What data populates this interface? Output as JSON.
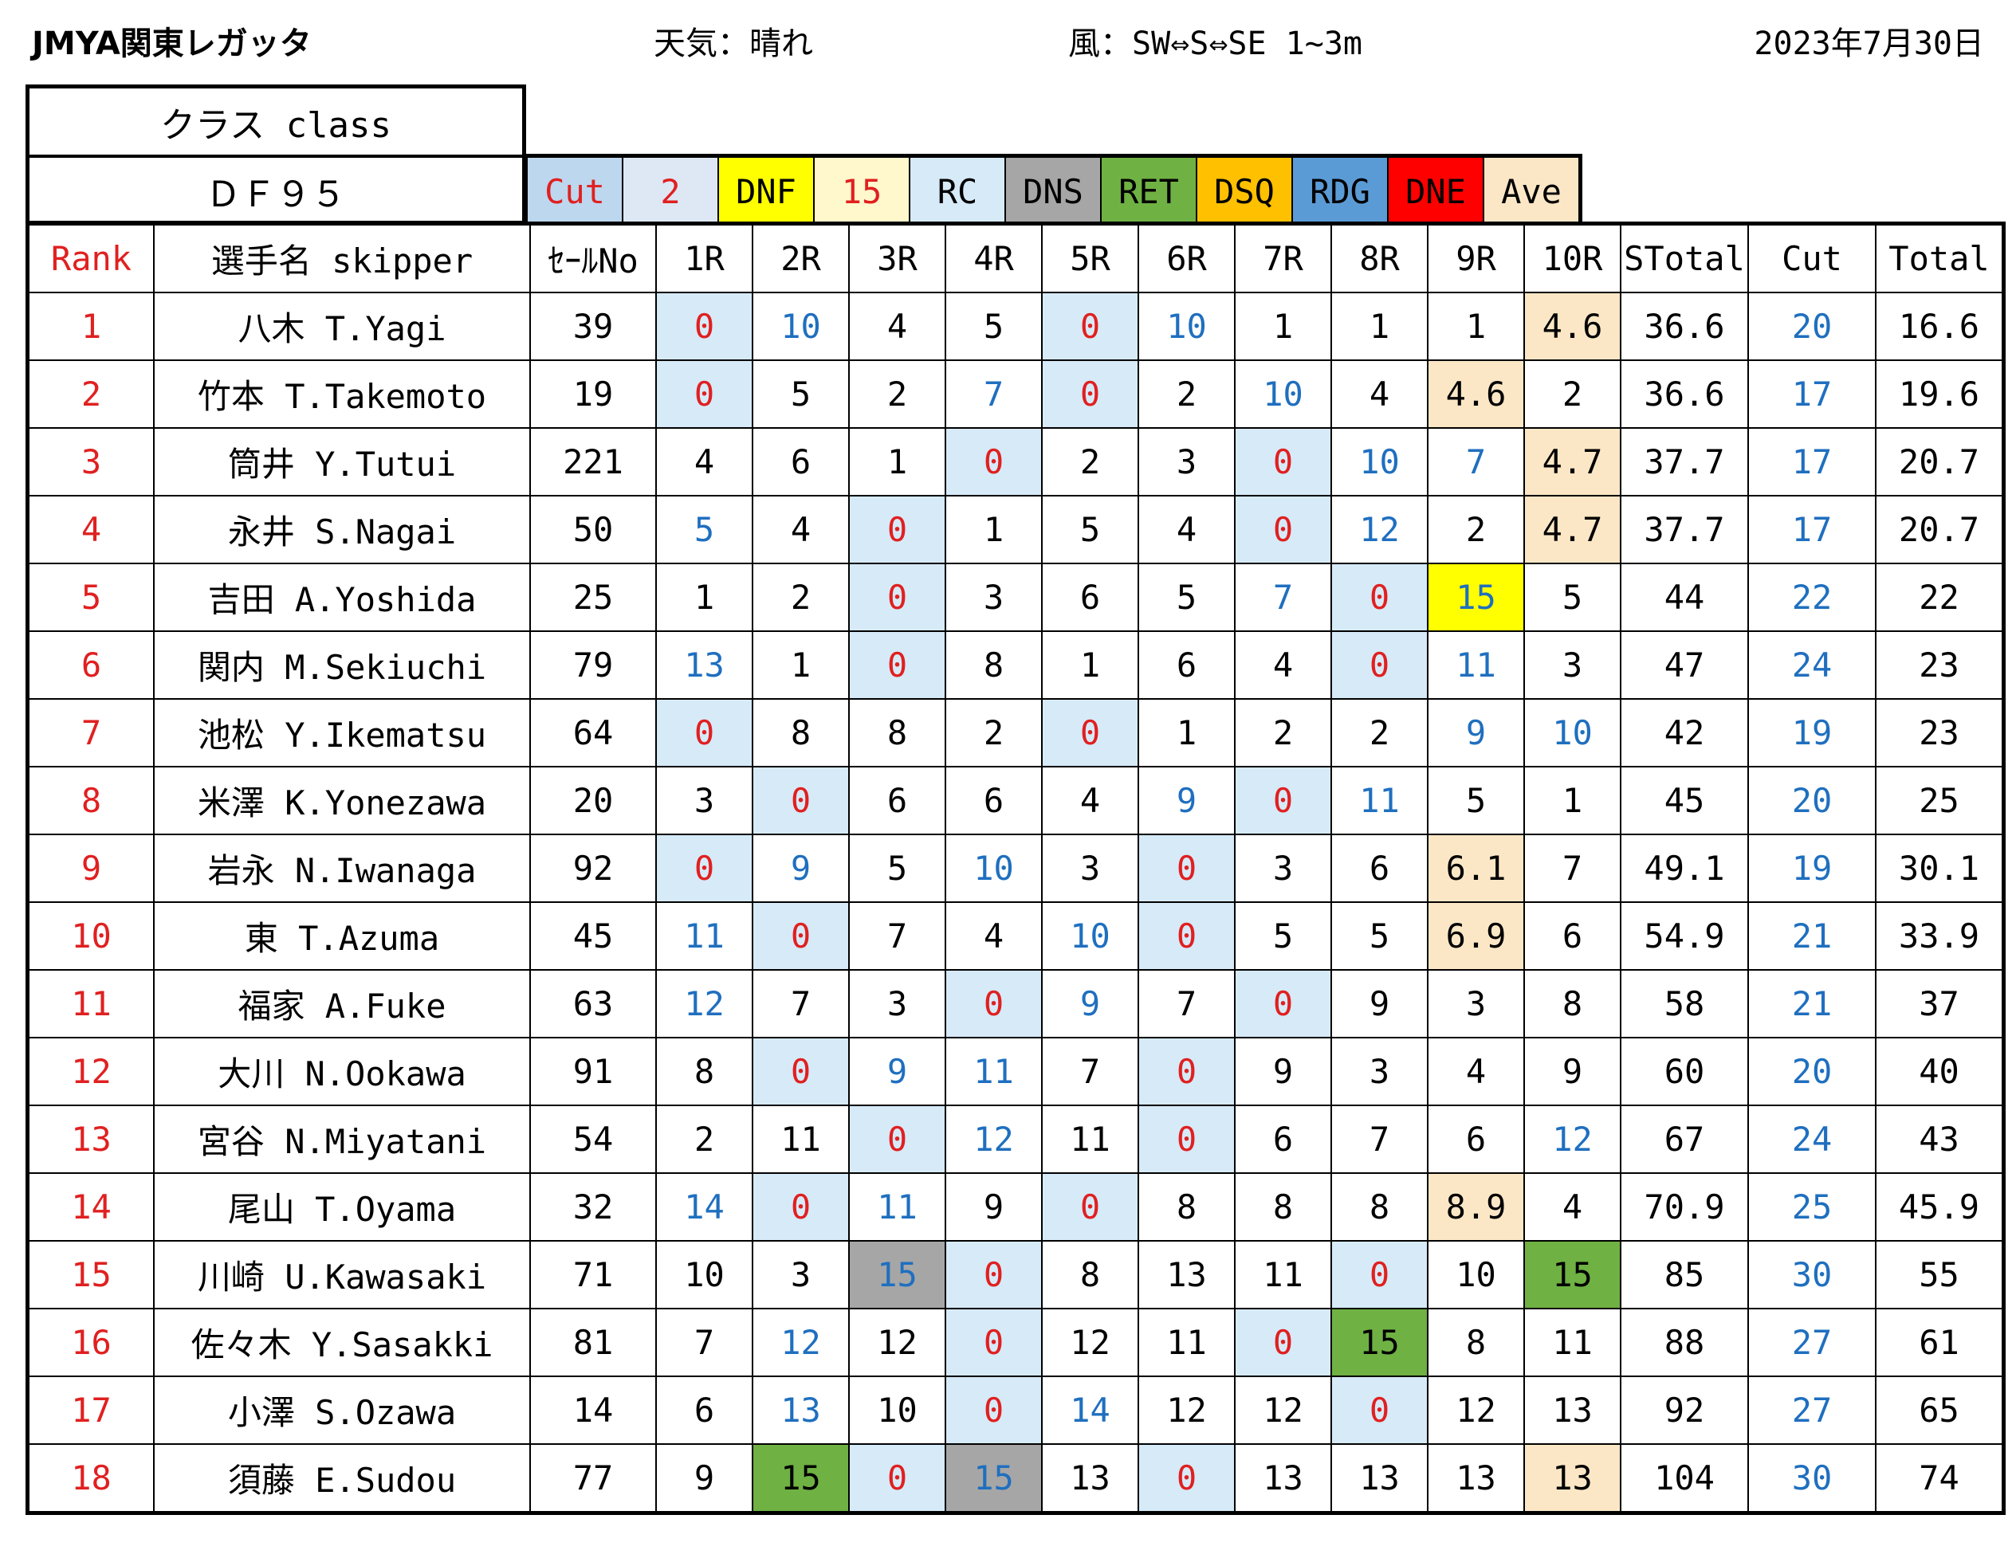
{
  "header": {
    "title": "JMYA関東レガッタ",
    "weather": "天気：晴れ",
    "wind": "風：SW⇔S⇔SE 1~3m",
    "date": "2023年7月30日"
  },
  "class_box": {
    "label": "クラス class",
    "value": "ＤＦ９５"
  },
  "legend": [
    {
      "label": "Cut",
      "bg": "#bdd7ee",
      "color": "#e02020"
    },
    {
      "label": "2",
      "bg": "#dde8f4",
      "color": "#e02020"
    },
    {
      "label": "DNF",
      "bg": "#ffff00",
      "color": "#000000"
    },
    {
      "label": "15",
      "bg": "#fff8cc",
      "color": "#e02020"
    },
    {
      "label": "RC",
      "bg": "#d6eaf8",
      "color": "#000000"
    },
    {
      "label": "DNS",
      "bg": "#a6a6a6",
      "color": "#000000"
    },
    {
      "label": "RET",
      "bg": "#6fb143",
      "color": "#000000"
    },
    {
      "label": "DSQ",
      "bg": "#ffc000",
      "color": "#000000"
    },
    {
      "label": "RDG",
      "bg": "#5b9bd5",
      "color": "#000000"
    },
    {
      "label": "DNE",
      "bg": "#ff0000",
      "color": "#000000"
    },
    {
      "label": "Ave",
      "bg": "#fbe7c6",
      "color": "#000000"
    }
  ],
  "columns": [
    "Rank",
    "選手名 skipper",
    "ｾｰﾙNo",
    "1R",
    "2R",
    "3R",
    "4R",
    "5R",
    "6R",
    "7R",
    "8R",
    "9R",
    "10R",
    "STotal",
    "Cut",
    "Total"
  ],
  "colors": {
    "zero_blue": "#d6eaf8",
    "ave": "#fbe7c6",
    "dnf": "#ffff00",
    "ret": "#6fb143",
    "dns": "#a6a6a6",
    "text_blue": "#1f6fbf",
    "text_red": "#e02020"
  },
  "rows": [
    {
      "rank": "1",
      "name": "八木 T.Yagi",
      "sail": "39",
      "races": [
        [
          "0",
          "z"
        ],
        [
          "10",
          "b"
        ],
        [
          "4",
          ""
        ],
        [
          "5",
          ""
        ],
        [
          "0",
          "z"
        ],
        [
          "10",
          "b"
        ],
        [
          "1",
          ""
        ],
        [
          "1",
          ""
        ],
        [
          "1",
          ""
        ],
        [
          "4.6",
          "a"
        ]
      ],
      "stotal": "36.6",
      "cut": "20",
      "total": "16.6"
    },
    {
      "rank": "2",
      "name": "竹本 T.Takemoto",
      "sail": "19",
      "races": [
        [
          "0",
          "z"
        ],
        [
          "5",
          ""
        ],
        [
          "2",
          ""
        ],
        [
          "7",
          "b"
        ],
        [
          "0",
          "z"
        ],
        [
          "2",
          ""
        ],
        [
          "10",
          "b"
        ],
        [
          "4",
          ""
        ],
        [
          "4.6",
          "a"
        ],
        [
          "2",
          ""
        ]
      ],
      "stotal": "36.6",
      "cut": "17",
      "total": "19.6"
    },
    {
      "rank": "3",
      "name": "筒井 Y.Tutui",
      "sail": "221",
      "races": [
        [
          "4",
          ""
        ],
        [
          "6",
          ""
        ],
        [
          "1",
          ""
        ],
        [
          "0",
          "z"
        ],
        [
          "2",
          ""
        ],
        [
          "3",
          ""
        ],
        [
          "0",
          "z"
        ],
        [
          "10",
          "b"
        ],
        [
          "7",
          "b"
        ],
        [
          "4.7",
          "a"
        ]
      ],
      "stotal": "37.7",
      "cut": "17",
      "total": "20.7"
    },
    {
      "rank": "4",
      "name": "永井 S.Nagai",
      "sail": "50",
      "races": [
        [
          "5",
          "b"
        ],
        [
          "4",
          ""
        ],
        [
          "0",
          "z"
        ],
        [
          "1",
          ""
        ],
        [
          "5",
          ""
        ],
        [
          "4",
          ""
        ],
        [
          "0",
          "z"
        ],
        [
          "12",
          "b"
        ],
        [
          "2",
          ""
        ],
        [
          "4.7",
          "a"
        ]
      ],
      "stotal": "37.7",
      "cut": "17",
      "total": "20.7"
    },
    {
      "rank": "5",
      "name": "吉田 A.Yoshida",
      "sail": "25",
      "races": [
        [
          "1",
          ""
        ],
        [
          "2",
          ""
        ],
        [
          "0",
          "z"
        ],
        [
          "3",
          ""
        ],
        [
          "6",
          ""
        ],
        [
          "5",
          ""
        ],
        [
          "7",
          "b"
        ],
        [
          "0",
          "z"
        ],
        [
          "15",
          "y"
        ],
        [
          "5",
          ""
        ]
      ],
      "stotal": "44",
      "cut": "22",
      "total": "22"
    },
    {
      "rank": "6",
      "name": "関内 M.Sekiuchi",
      "sail": "79",
      "races": [
        [
          "13",
          "b"
        ],
        [
          "1",
          ""
        ],
        [
          "0",
          "z"
        ],
        [
          "8",
          ""
        ],
        [
          "1",
          ""
        ],
        [
          "6",
          ""
        ],
        [
          "4",
          ""
        ],
        [
          "0",
          "z"
        ],
        [
          "11",
          "b"
        ],
        [
          "3",
          ""
        ]
      ],
      "stotal": "47",
      "cut": "24",
      "total": "23"
    },
    {
      "rank": "7",
      "name": "池松 Y.Ikematsu",
      "sail": "64",
      "races": [
        [
          "0",
          "z"
        ],
        [
          "8",
          ""
        ],
        [
          "8",
          ""
        ],
        [
          "2",
          ""
        ],
        [
          "0",
          "z"
        ],
        [
          "1",
          ""
        ],
        [
          "2",
          ""
        ],
        [
          "2",
          ""
        ],
        [
          "9",
          "b"
        ],
        [
          "10",
          "b"
        ]
      ],
      "stotal": "42",
      "cut": "19",
      "total": "23"
    },
    {
      "rank": "8",
      "name": "米澤 K.Yonezawa",
      "sail": "20",
      "races": [
        [
          "3",
          ""
        ],
        [
          "0",
          "z"
        ],
        [
          "6",
          ""
        ],
        [
          "6",
          ""
        ],
        [
          "4",
          ""
        ],
        [
          "9",
          "b"
        ],
        [
          "0",
          "z"
        ],
        [
          "11",
          "b"
        ],
        [
          "5",
          ""
        ],
        [
          "1",
          ""
        ]
      ],
      "stotal": "45",
      "cut": "20",
      "total": "25"
    },
    {
      "rank": "9",
      "name": "岩永 N.Iwanaga",
      "sail": "92",
      "races": [
        [
          "0",
          "z"
        ],
        [
          "9",
          "b"
        ],
        [
          "5",
          ""
        ],
        [
          "10",
          "b"
        ],
        [
          "3",
          ""
        ],
        [
          "0",
          "z"
        ],
        [
          "3",
          ""
        ],
        [
          "6",
          ""
        ],
        [
          "6.1",
          "a"
        ],
        [
          "7",
          ""
        ]
      ],
      "stotal": "49.1",
      "cut": "19",
      "total": "30.1"
    },
    {
      "rank": "10",
      "name": "東 T.Azuma",
      "sail": "45",
      "races": [
        [
          "11",
          "b"
        ],
        [
          "0",
          "z"
        ],
        [
          "7",
          ""
        ],
        [
          "4",
          ""
        ],
        [
          "10",
          "b"
        ],
        [
          "0",
          "z"
        ],
        [
          "5",
          ""
        ],
        [
          "5",
          ""
        ],
        [
          "6.9",
          "a"
        ],
        [
          "6",
          ""
        ]
      ],
      "stotal": "54.9",
      "cut": "21",
      "total": "33.9"
    },
    {
      "rank": "11",
      "name": "福家 A.Fuke",
      "sail": "63",
      "races": [
        [
          "12",
          "b"
        ],
        [
          "7",
          ""
        ],
        [
          "3",
          ""
        ],
        [
          "0",
          "z"
        ],
        [
          "9",
          "b"
        ],
        [
          "7",
          ""
        ],
        [
          "0",
          "z"
        ],
        [
          "9",
          ""
        ],
        [
          "3",
          ""
        ],
        [
          "8",
          ""
        ]
      ],
      "stotal": "58",
      "cut": "21",
      "total": "37"
    },
    {
      "rank": "12",
      "name": "大川 N.Ookawa",
      "sail": "91",
      "races": [
        [
          "8",
          ""
        ],
        [
          "0",
          "z"
        ],
        [
          "9",
          "b"
        ],
        [
          "11",
          "b"
        ],
        [
          "7",
          ""
        ],
        [
          "0",
          "z"
        ],
        [
          "9",
          ""
        ],
        [
          "3",
          ""
        ],
        [
          "4",
          ""
        ],
        [
          "9",
          ""
        ]
      ],
      "stotal": "60",
      "cut": "20",
      "total": "40"
    },
    {
      "rank": "13",
      "name": "宮谷 N.Miyatani",
      "sail": "54",
      "races": [
        [
          "2",
          ""
        ],
        [
          "11",
          ""
        ],
        [
          "0",
          "z"
        ],
        [
          "12",
          "b"
        ],
        [
          "11",
          ""
        ],
        [
          "0",
          "z"
        ],
        [
          "6",
          ""
        ],
        [
          "7",
          ""
        ],
        [
          "6",
          ""
        ],
        [
          "12",
          "b"
        ]
      ],
      "stotal": "67",
      "cut": "24",
      "total": "43"
    },
    {
      "rank": "14",
      "name": "尾山 T.Oyama",
      "sail": "32",
      "races": [
        [
          "14",
          "b"
        ],
        [
          "0",
          "z"
        ],
        [
          "11",
          "b"
        ],
        [
          "9",
          ""
        ],
        [
          "0",
          "z"
        ],
        [
          "8",
          ""
        ],
        [
          "8",
          ""
        ],
        [
          "8",
          ""
        ],
        [
          "8.9",
          "a"
        ],
        [
          "4",
          ""
        ]
      ],
      "stotal": "70.9",
      "cut": "25",
      "total": "45.9"
    },
    {
      "rank": "15",
      "name": "川崎 U.Kawasaki",
      "sail": "71",
      "races": [
        [
          "10",
          ""
        ],
        [
          "3",
          ""
        ],
        [
          "15",
          "g"
        ],
        [
          "0",
          "z"
        ],
        [
          "8",
          ""
        ],
        [
          "13",
          ""
        ],
        [
          "11",
          ""
        ],
        [
          "0",
          "z"
        ],
        [
          "10",
          ""
        ],
        [
          "15",
          "r"
        ]
      ],
      "stotal": "85",
      "cut": "30",
      "total": "55"
    },
    {
      "rank": "16",
      "name": "佐々木 Y.Sasakki",
      "sail": "81",
      "races": [
        [
          "7",
          ""
        ],
        [
          "12",
          "b"
        ],
        [
          "12",
          ""
        ],
        [
          "0",
          "z"
        ],
        [
          "12",
          ""
        ],
        [
          "11",
          ""
        ],
        [
          "0",
          "z"
        ],
        [
          "15",
          "r"
        ],
        [
          "8",
          ""
        ],
        [
          "11",
          ""
        ]
      ],
      "stotal": "88",
      "cut": "27",
      "total": "61"
    },
    {
      "rank": "17",
      "name": "小澤 S.Ozawa",
      "sail": "14",
      "races": [
        [
          "6",
          ""
        ],
        [
          "13",
          "b"
        ],
        [
          "10",
          ""
        ],
        [
          "0",
          "z"
        ],
        [
          "14",
          "b"
        ],
        [
          "12",
          ""
        ],
        [
          "12",
          ""
        ],
        [
          "0",
          "z"
        ],
        [
          "12",
          ""
        ],
        [
          "13",
          ""
        ]
      ],
      "stotal": "92",
      "cut": "27",
      "total": "65"
    },
    {
      "rank": "18",
      "name": "須藤 E.Sudou",
      "sail": "77",
      "races": [
        [
          "9",
          ""
        ],
        [
          "15",
          "r"
        ],
        [
          "0",
          "z"
        ],
        [
          "15",
          "g"
        ],
        [
          "13",
          ""
        ],
        [
          "0",
          "z"
        ],
        [
          "13",
          ""
        ],
        [
          "13",
          ""
        ],
        [
          "13",
          ""
        ],
        [
          "13",
          "a"
        ]
      ],
      "stotal": "104",
      "cut": "30",
      "total": "74"
    }
  ]
}
